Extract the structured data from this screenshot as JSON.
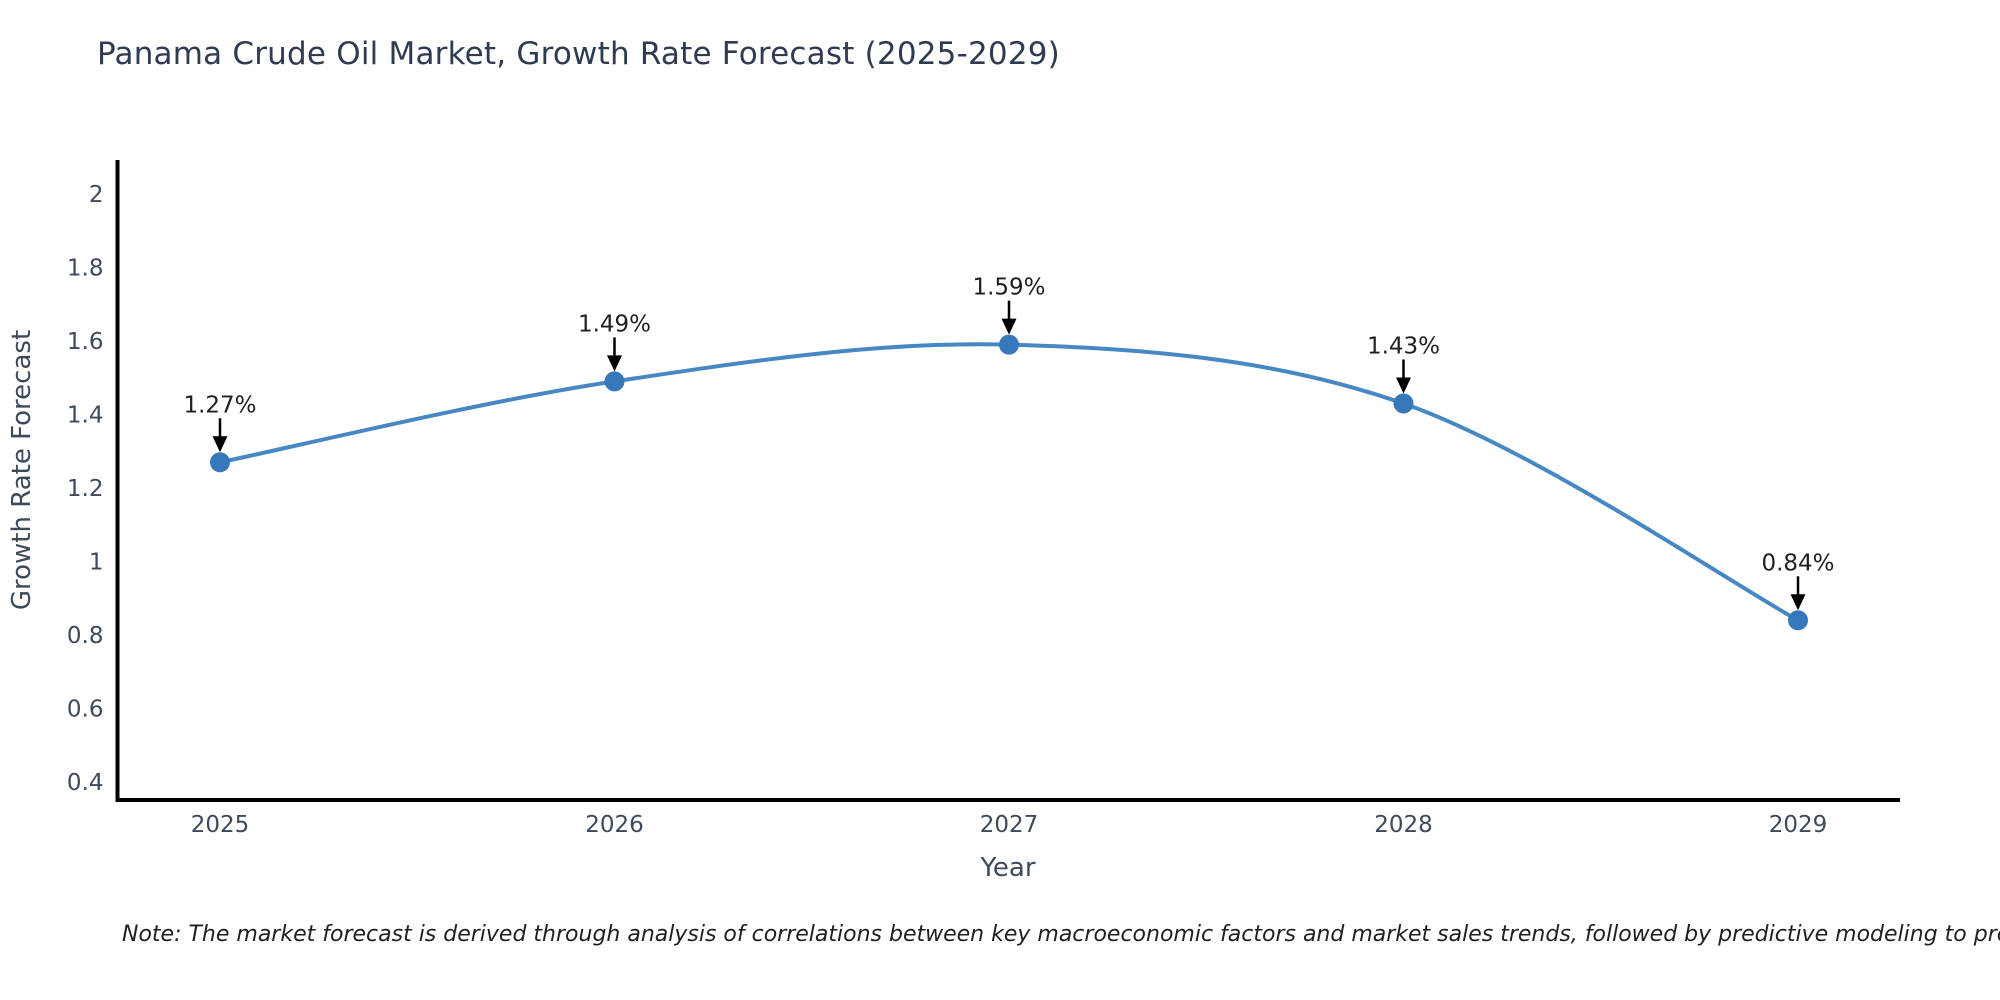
{
  "title": {
    "text": "Panama Crude Oil Market, Growth Rate Forecast (2025-2029)"
  },
  "note": {
    "text": "Note: The market forecast is derived through analysis of correlations between key macroeconomic factors and market sales trends, followed by predictive modeling to project future sales"
  },
  "chart_data": {
    "type": "line",
    "title": "Panama Crude Oil Market, Growth Rate Forecast (2025-2029)",
    "xlabel": "Year",
    "ylabel": "Growth Rate Forecast",
    "x": [
      2025,
      2026,
      2027,
      2028,
      2029
    ],
    "x_tick_labels": [
      "2025",
      "2026",
      "2027",
      "2028",
      "2029"
    ],
    "series": [
      {
        "name": "Growth Rate Forecast",
        "values": [
          1.27,
          1.49,
          1.59,
          1.43,
          0.84
        ]
      }
    ],
    "point_labels": [
      "1.27%",
      "1.49%",
      "1.59%",
      "1.43%",
      "0.84%"
    ],
    "y_tick_values": [
      2,
      1.8,
      1.6,
      1.4,
      1.2,
      1,
      0.8,
      0.6,
      0.4
    ],
    "y_tick_labels": [
      "2",
      "1.8",
      "1.6",
      "1.4",
      "1.2",
      "1",
      "0.8",
      "0.6",
      "0.4"
    ],
    "ylim": [
      0.35,
      2.09
    ],
    "grid": false,
    "legend_position": "none",
    "annotations": "value labels with down arrows above each point",
    "colors": {
      "line": "#4787c3",
      "marker": "#3579bb",
      "axis_line": "#000000",
      "tick_text": "#3d4a5c",
      "title_text": "#2e3b50",
      "annotation_text": "#1f1f1f",
      "arrow": "#000000"
    }
  }
}
